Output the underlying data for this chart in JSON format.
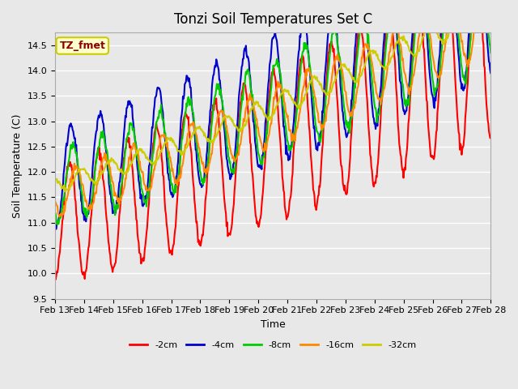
{
  "title": "Tonzi Soil Temperatures Set C",
  "xlabel": "Time",
  "ylabel": "Soil Temperature (C)",
  "ylim": [
    9.5,
    14.75
  ],
  "plot_bg_color": "#e8e8e8",
  "annotation_text": "TZ_fmet",
  "annotation_color": "#8B0000",
  "annotation_bg": "#ffffcc",
  "annotation_border": "#cccc00",
  "series": {
    "-2cm": {
      "color": "#ff0000",
      "linewidth": 1.5
    },
    "-4cm": {
      "color": "#0000cc",
      "linewidth": 1.5
    },
    "-8cm": {
      "color": "#00cc00",
      "linewidth": 1.5
    },
    "-16cm": {
      "color": "#ff8800",
      "linewidth": 1.5
    },
    "-32cm": {
      "color": "#cccc00",
      "linewidth": 1.5
    }
  },
  "xtick_labels": [
    "Feb 13",
    "Feb 14",
    "Feb 15",
    "Feb 16",
    "Feb 17",
    "Feb 18",
    "Feb 19",
    "Feb 20",
    "Feb 21",
    "Feb 22",
    "Feb 23",
    "Feb 24",
    "Feb 25",
    "Feb 26",
    "Feb 27",
    "Feb 28"
  ],
  "num_days": 15,
  "pts_per_day": 48
}
